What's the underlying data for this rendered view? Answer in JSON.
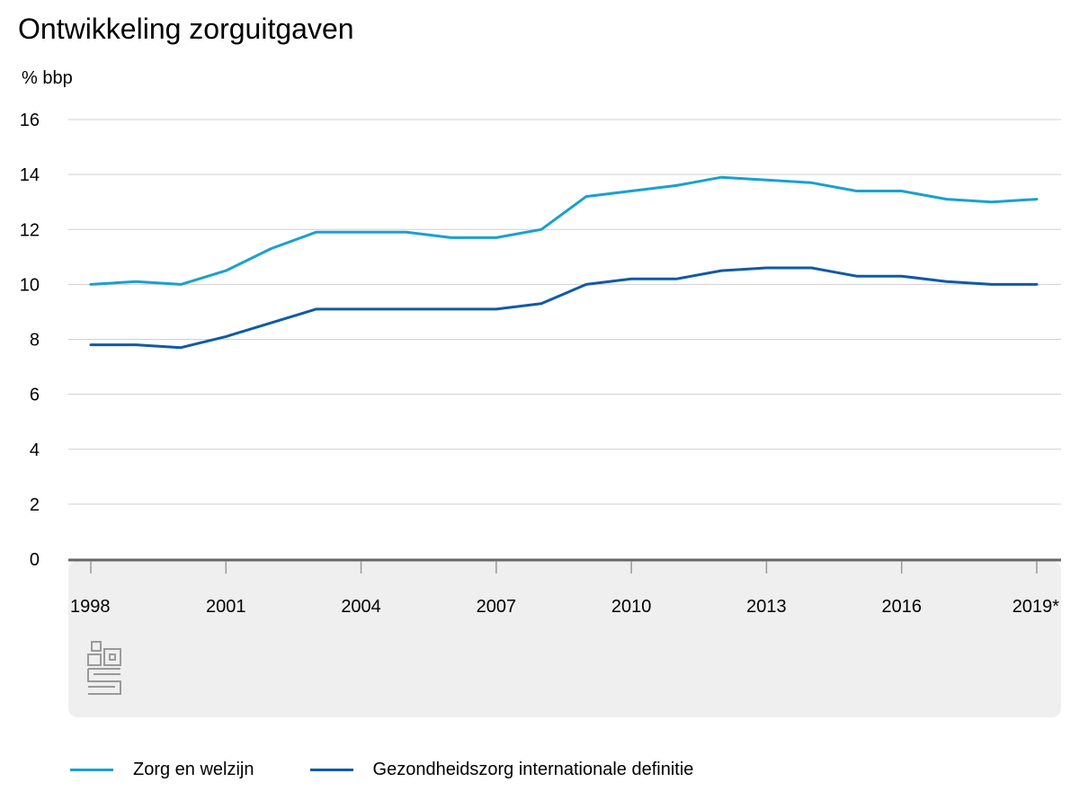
{
  "title": "Ontwikkeling zorguitgaven",
  "chart_data": {
    "type": "line",
    "title": "Ontwikkeling zorguitgaven",
    "ylabel": "% bbp",
    "xlabel": "",
    "ylim": [
      0,
      16
    ],
    "yticks": [
      0,
      2,
      4,
      6,
      8,
      10,
      12,
      14,
      16
    ],
    "x": [
      "1998",
      "1999",
      "2000",
      "2001",
      "2002",
      "2003",
      "2004",
      "2005",
      "2006",
      "2007",
      "2008",
      "2009",
      "2010",
      "2011",
      "2012",
      "2013",
      "2014",
      "2015",
      "2016",
      "2017",
      "2018",
      "2019*"
    ],
    "xtick_labels": [
      "1998",
      "2001",
      "2004",
      "2007",
      "2010",
      "2013",
      "2016",
      "2019*"
    ],
    "series": [
      {
        "name": "Zorg en welzijn",
        "color": "#1aa0cf",
        "values": [
          10.0,
          10.1,
          10.0,
          10.5,
          11.3,
          11.9,
          11.9,
          11.9,
          11.7,
          11.7,
          12.0,
          13.2,
          13.4,
          13.6,
          13.9,
          13.8,
          13.7,
          13.4,
          13.4,
          13.1,
          13.0,
          13.1
        ]
      },
      {
        "name": "Gezondheidszorg internationale definitie",
        "color": "#0f5aa8",
        "values": [
          7.8,
          7.8,
          7.7,
          8.1,
          8.6,
          9.1,
          9.1,
          9.1,
          9.1,
          9.1,
          9.3,
          10.0,
          10.2,
          10.2,
          10.5,
          10.6,
          10.6,
          10.3,
          10.3,
          10.1,
          10.0,
          10.0
        ]
      }
    ],
    "grid": true,
    "legend_position": "bottom-left"
  },
  "colors": {
    "gridline": "#d0d0d0",
    "axis": "#666666",
    "footer_bg": "#efefef",
    "logo": "#9a9a9a"
  },
  "logo": {
    "icon": "cbs-logo-icon"
  }
}
